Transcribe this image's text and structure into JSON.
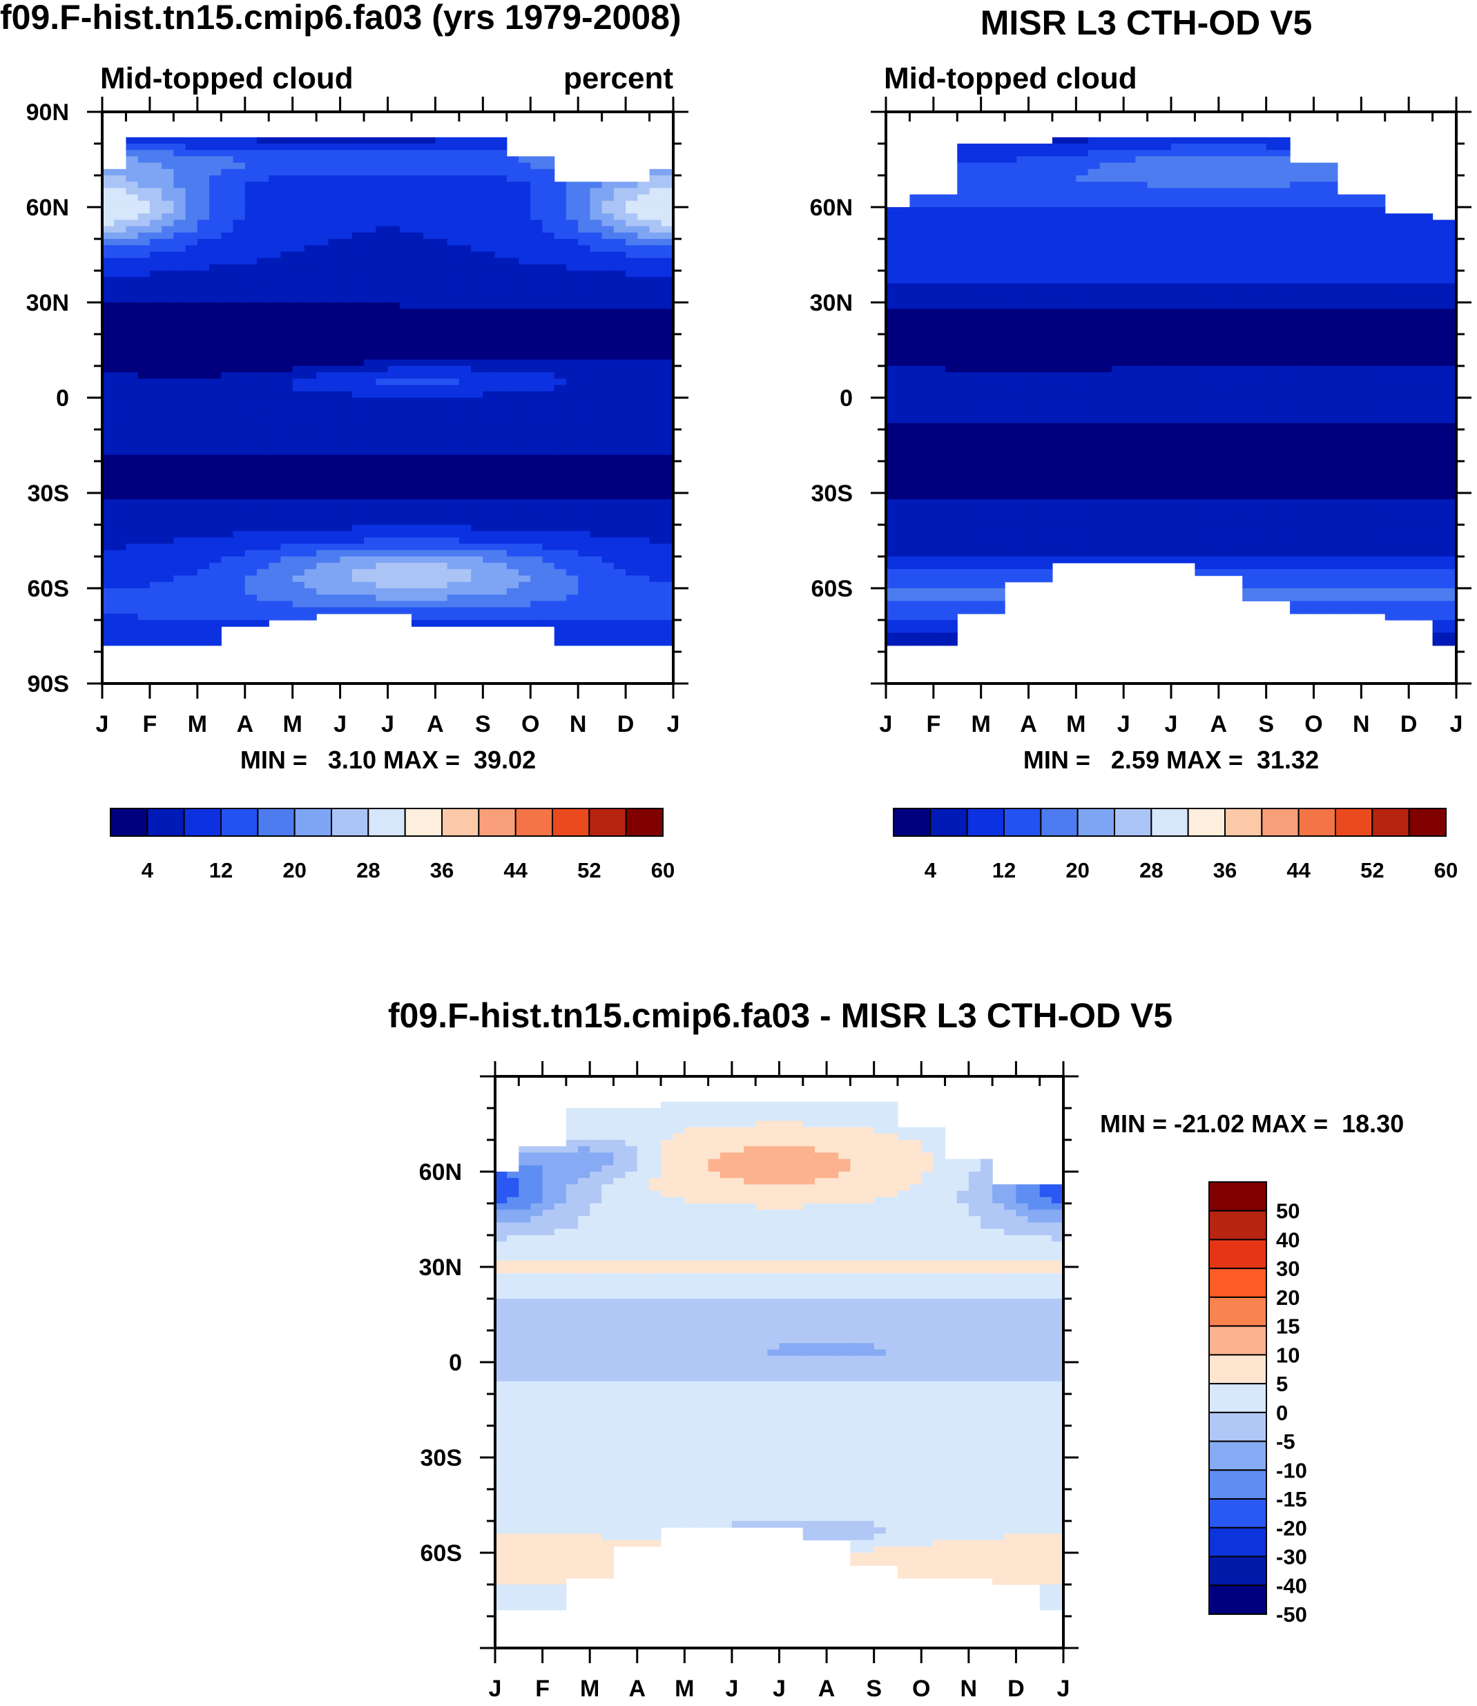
{
  "palettes": {
    "abs": [
      "#00007e",
      "#001ab8",
      "#0b31e0",
      "#2452f2",
      "#4d7cf0",
      "#7ea4f4",
      "#abc4f6",
      "#d6e6fb",
      "#fdeedd",
      "#fcc9a8",
      "#f9a07a",
      "#f57447",
      "#ea4a1d",
      "#b72410",
      "#800000"
    ],
    "diff": [
      "#800000",
      "#b72410",
      "#e63515",
      "#ff5c26",
      "#f9834f",
      "#fcb28e",
      "#fde5d0",
      "#d8e8fb",
      "#b1c8f6",
      "#86aaf3",
      "#5f8ef3",
      "#2a58f2",
      "#0c34db",
      "#0019a8",
      "#00007e"
    ]
  },
  "chart_data": [
    {
      "id": "model",
      "type": "heatmap",
      "title": "f09.F-hist.tn15.cmip6.fa03 (yrs 1979-2008)",
      "left_label": "Mid-topped cloud",
      "right_label": "percent",
      "x_tick_labels": [
        "J",
        "F",
        "M",
        "A",
        "M",
        "J",
        "J",
        "A",
        "S",
        "O",
        "N",
        "D",
        "J"
      ],
      "y_tick_labels": [
        "90N",
        "60N",
        "30N",
        "0",
        "30S",
        "60S",
        "90S"
      ],
      "ylim": [
        -90,
        90
      ],
      "stats": "MIN =   3.10 MAX =  39.02",
      "colorbar_labels": [
        "4",
        "12",
        "20",
        "28",
        "36",
        "44",
        "52",
        "60"
      ],
      "contour_levels": [
        2,
        6,
        10,
        14,
        18,
        22,
        26,
        30,
        34,
        38,
        42,
        46,
        50,
        54,
        58,
        62
      ],
      "min": 3.1,
      "max": 39.02,
      "north_limit_by_month": [
        72,
        82,
        82,
        82,
        82,
        82,
        82,
        82,
        82,
        75,
        68,
        68,
        72
      ],
      "south_limit_by_month": [
        -78,
        -78,
        -78,
        -72,
        -70,
        -68,
        -68,
        -72,
        -72,
        -72,
        -78,
        -78,
        -78
      ],
      "field": "model"
    },
    {
      "id": "obs",
      "type": "heatmap",
      "title": "MISR L3 CTH-OD V5",
      "left_label": "Mid-topped cloud",
      "x_tick_labels": [
        "J",
        "F",
        "M",
        "A",
        "M",
        "J",
        "J",
        "A",
        "S",
        "O",
        "N",
        "D",
        "J"
      ],
      "y_tick_labels": [
        "60N",
        "30N",
        "0",
        "30S",
        "60S"
      ],
      "ylim": [
        -90,
        90
      ],
      "stats": "MIN =   2.59 MAX =  31.32",
      "colorbar_labels": [
        "4",
        "12",
        "20",
        "28",
        "36",
        "44",
        "52",
        "60"
      ],
      "contour_levels": [
        2,
        6,
        10,
        14,
        18,
        22,
        26,
        30,
        34,
        38,
        42,
        46,
        50,
        54,
        58,
        62
      ],
      "min": 2.59,
      "max": 31.32,
      "north_limit_by_month": [
        60,
        64,
        80,
        80,
        81,
        81,
        81,
        82,
        82,
        73,
        63,
        57,
        56
      ],
      "south_limit_by_month": [
        -78,
        -78,
        -68,
        -58,
        -52,
        -52,
        -52,
        -55,
        -64,
        -68,
        -68,
        -70,
        -78
      ],
      "field": "obs"
    },
    {
      "id": "diff",
      "type": "heatmap",
      "title": "f09.F-hist.tn15.cmip6.fa03 - MISR L3 CTH-OD V5",
      "x_tick_labels": [
        "J",
        "F",
        "M",
        "A",
        "M",
        "J",
        "J",
        "A",
        "S",
        "O",
        "N",
        "D",
        "J"
      ],
      "y_tick_labels": [
        "60N",
        "30N",
        "0",
        "30S",
        "60S"
      ],
      "ylim": [
        -90,
        90
      ],
      "stats": "MIN = -21.02 MAX =  18.30",
      "colorbar_labels": [
        "50",
        "40",
        "30",
        "20",
        "15",
        "10",
        "5",
        "0",
        "-5",
        "-10",
        "-15",
        "-20",
        "-30",
        "-40",
        "-50"
      ],
      "contour_levels": [
        -60,
        -50,
        -40,
        -30,
        -20,
        -15,
        -10,
        -5,
        0,
        5,
        10,
        15,
        20,
        30,
        40,
        50,
        60
      ],
      "min": -21.02,
      "max": 18.3,
      "north_limit_by_month": [
        59,
        68,
        80,
        80,
        81,
        81,
        81,
        82,
        82,
        73,
        63,
        56,
        56
      ],
      "south_limit_by_month": [
        -78,
        -78,
        -68,
        -58,
        -52,
        -52,
        -52,
        -55,
        -64,
        -68,
        -68,
        -70,
        -78
      ],
      "field": "diff"
    }
  ]
}
